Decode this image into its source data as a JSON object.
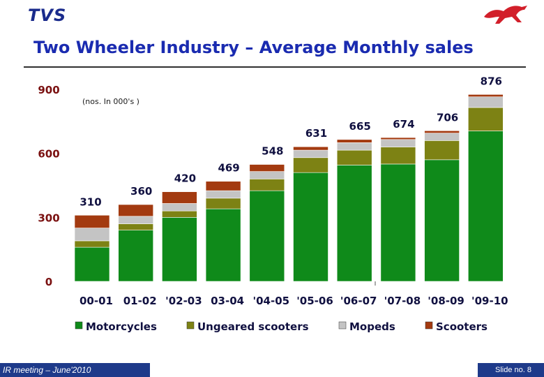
{
  "header": {
    "logo_text": "TVS",
    "title": "Two Wheeler Industry – Average Monthly sales"
  },
  "footer": {
    "left": "IR meeting – June'2010",
    "right": "Slide no. 8"
  },
  "chart_data": {
    "type": "bar",
    "stacked": true,
    "subtitle": "(nos. In 000's )",
    "categories": [
      "00-01",
      "01-02",
      "'02-03",
      "03-04",
      "'04-05",
      "'05-06",
      "'06-07",
      "'07-08",
      "'08-09",
      "'09-10"
    ],
    "totals": [
      310,
      360,
      420,
      469,
      548,
      631,
      665,
      674,
      706,
      876
    ],
    "total_labels": [
      "310",
      "360",
      "420",
      "469",
      "548",
      "631",
      "665",
      "674",
      "706",
      "876"
    ],
    "series": [
      {
        "name": "Motorcycles",
        "color": "#0f8a1a",
        "values": [
          160,
          240,
          300,
          340,
          425,
          510,
          545,
          550,
          570,
          705
        ]
      },
      {
        "name": "Ungeared scooters",
        "color": "#7d8214",
        "values": [
          30,
          30,
          30,
          50,
          55,
          70,
          70,
          80,
          90,
          110
        ]
      },
      {
        "name": "Mopeds",
        "color": "#c4c4c4",
        "values": [
          60,
          35,
          35,
          35,
          35,
          35,
          35,
          35,
          35,
          50
        ]
      },
      {
        "name": "Scooters",
        "color": "#a33a10",
        "values": [
          60,
          55,
          55,
          44,
          33,
          16,
          15,
          9,
          11,
          11
        ]
      }
    ],
    "yticks": [
      0,
      300,
      600,
      900
    ],
    "ylim": [
      0,
      900
    ],
    "grid": false,
    "legend_position": "bottom"
  }
}
